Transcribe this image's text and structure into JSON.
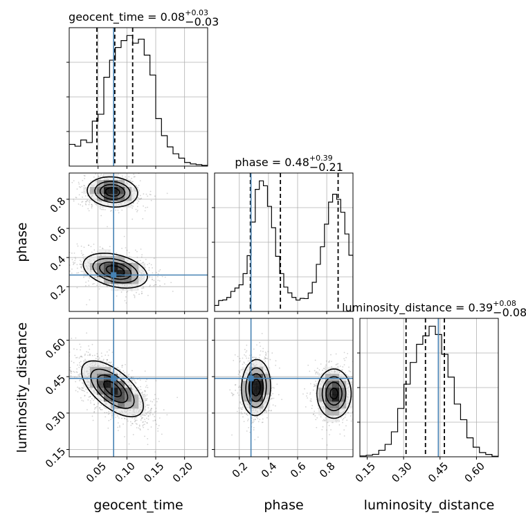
{
  "chart_data": {
    "type": "corner",
    "parameters": [
      "geocent_time",
      "phase",
      "luminosity_distance"
    ],
    "truths": {
      "geocent_time": 0.077,
      "phase": 0.28,
      "luminosity_distance": 0.443
    },
    "truth_color": "#4682b4",
    "titles": [
      {
        "param": "geocent_time",
        "prefix": "geocent_time = ",
        "median": "0.08",
        "plus": "+0.03",
        "minus": "−0.03"
      },
      {
        "param": "phase",
        "prefix": "phase = ",
        "median": "0.48",
        "plus": "+0.39",
        "minus": "−0.21"
      },
      {
        "param": "luminosity_distance",
        "prefix": "luminosity_distance = ",
        "median": "0.39",
        "plus": "+0.08",
        "minus": "−0.08"
      }
    ],
    "axes": {
      "geocent_time": {
        "range": [
          0.0,
          0.24
        ],
        "ticks": [
          0.05,
          0.1,
          0.15,
          0.2
        ],
        "tick_labels": [
          "0.05",
          "0.10",
          "0.15",
          "0.20"
        ]
      },
      "phase": {
        "range": [
          0.03,
          0.98
        ],
        "ticks": [
          0.2,
          0.4,
          0.6,
          0.8
        ],
        "tick_labels": [
          "0.2",
          "0.4",
          "0.6",
          "0.8"
        ]
      },
      "luminosity_distance": {
        "range": [
          0.12,
          0.69
        ],
        "ticks": [
          0.15,
          0.3,
          0.45,
          0.6
        ],
        "tick_labels": [
          "0.15",
          "0.30",
          "0.45",
          "0.60"
        ]
      }
    },
    "quantile_lines": {
      "geocent_time": [
        0.048,
        0.079,
        0.11
      ],
      "phase": [
        0.276,
        0.482,
        0.878
      ],
      "luminosity_distance": [
        0.31,
        0.39,
        0.468
      ]
    },
    "histograms": {
      "geocent_time": [
        0.6,
        0.55,
        0.72,
        0.65,
        1.24,
        1.43,
        2.45,
        2.92,
        3.27,
        3.46,
        3.6,
        3.39,
        3.5,
        3.06,
        2.51,
        1.31,
        0.84,
        0.53,
        0.34,
        0.22,
        0.1,
        0.06,
        0.04,
        0.02
      ],
      "phase": [
        2.6,
        4.75,
        5.01,
        6.1,
        8.72,
        10.2,
        11.6,
        16.45,
        24.3,
        38.91,
        53.14,
        56.85,
        54.7,
        45.74,
        36.46,
        24.0,
        16.48,
        10.6,
        8.1,
        6.1,
        4.95,
        5.69,
        5.59,
        8.03,
        12.7,
        20.51,
        28.15,
        38.01,
        47.6,
        51.03,
        48.8,
        43.18,
        33.73,
        24.47
      ],
      "luminosity_distance": [
        0.5,
        0.92,
        1.5,
        4.0,
        7.6,
        15.3,
        29.6,
        44.5,
        57.8,
        68.9,
        74.1,
        80.0,
        74.9,
        62.8,
        48.8,
        32.3,
        22.7,
        11.6,
        5.88,
        2.6,
        1.42,
        0.34
      ]
    },
    "blobs": {
      "phase_vs_geocent_time": [
        {
          "center": [
            0.075,
            0.85
          ],
          "sigma": [
            0.022,
            0.052
          ],
          "rho": -0.1,
          "weight": 0.5
        },
        {
          "center": [
            0.08,
            0.31
          ],
          "sigma": [
            0.028,
            0.06
          ],
          "rho": -0.35,
          "weight": 0.5
        }
      ],
      "luminosity_distance_vs_geocent_time": [
        {
          "center": [
            0.075,
            0.4
          ],
          "sigma": [
            0.027,
            0.058
          ],
          "rho": -0.62,
          "weight": 1.0
        }
      ],
      "luminosity_distance_vs_phase": [
        {
          "center": [
            0.315,
            0.405
          ],
          "sigma": [
            0.05,
            0.058
          ],
          "rho": 0.05,
          "weight": 0.52
        },
        {
          "center": [
            0.85,
            0.38
          ],
          "sigma": [
            0.06,
            0.052
          ],
          "rho": 0.0,
          "weight": 0.48
        }
      ]
    }
  }
}
